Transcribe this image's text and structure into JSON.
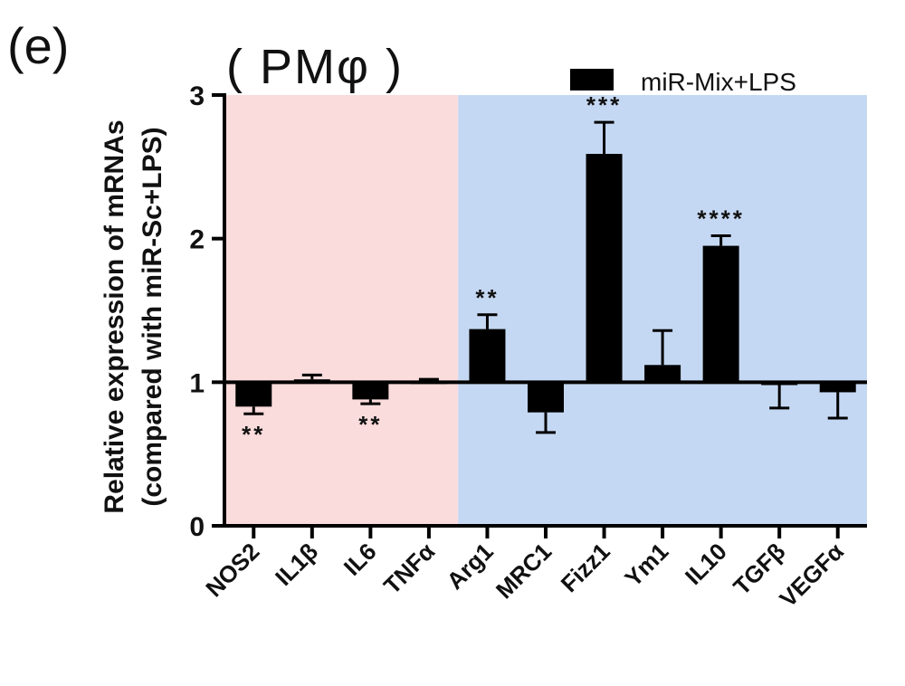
{
  "panel_label": "(e)",
  "colors": {
    "pro_inflammatory_bg": "#fbdcdc",
    "anti_inflammatory_bg": "#c5d8f3",
    "bar": "#000000",
    "axis": "#000000"
  },
  "chart_data": {
    "type": "bar",
    "title": "( PMφ )",
    "xlabel": "",
    "ylabel": [
      "Relative expression of mRNAs",
      "(compared with miR-Sc+LPS)"
    ],
    "ylim": [
      0,
      3
    ],
    "yticks": [
      0,
      1,
      2,
      3
    ],
    "baseline": 1,
    "categories": [
      "NOS2",
      "IL1β",
      "IL6",
      "TNFα",
      "Arg1",
      "MRC1",
      "Fizz1",
      "Ym1",
      "IL10",
      "TGFβ",
      "VEGFα"
    ],
    "series": [
      {
        "name": "miR-Mix+LPS",
        "values": [
          0.83,
          1.02,
          0.88,
          1.0,
          1.37,
          0.79,
          2.59,
          1.12,
          1.95,
          0.98,
          0.93
        ],
        "errors": [
          0.05,
          0.03,
          0.03,
          0.02,
          0.1,
          0.14,
          0.22,
          0.24,
          0.07,
          0.16,
          0.18
        ]
      }
    ],
    "significance": [
      "**",
      "",
      "**",
      "",
      "**",
      "",
      "***",
      "",
      "****",
      "",
      ""
    ],
    "background_groups": [
      {
        "from": "NOS2",
        "to": "TNFα",
        "color": "#fbdcdc"
      },
      {
        "from": "Arg1",
        "to": "VEGFα",
        "color": "#c5d8f3"
      }
    ],
    "legend_position": "top-right",
    "grid": false
  }
}
